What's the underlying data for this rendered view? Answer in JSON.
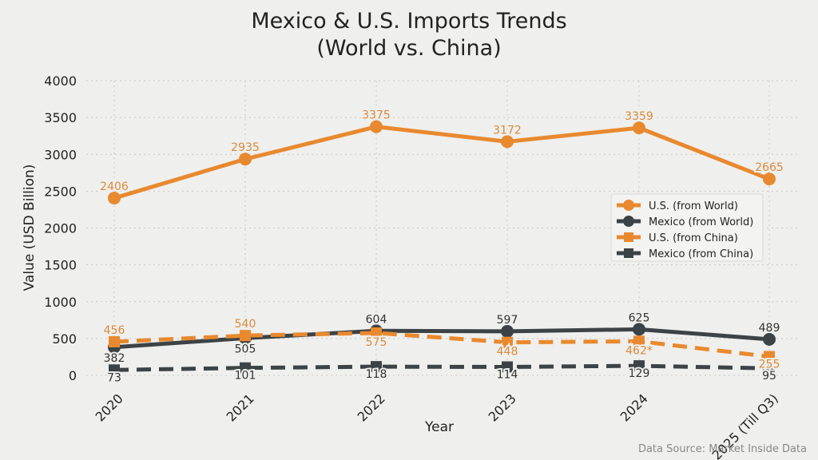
{
  "chart_data": {
    "type": "line",
    "title": "Mexico & U.S. Imports Trends\n(World vs. China)",
    "title_lines": [
      "Mexico & U.S. Imports Trends",
      "(World vs. China)"
    ],
    "xlabel": "Year",
    "ylabel": "Value (USD Billion)",
    "categories": [
      "2020",
      "2021",
      "2022",
      "2023",
      "2024",
      "2025 (Till Q3)"
    ],
    "ylim": [
      0,
      4000
    ],
    "yticks": [
      "0",
      "500",
      "1000",
      "1500",
      "2000",
      "2500",
      "3000",
      "3500",
      "4000"
    ],
    "grid": true,
    "legend_position": "right",
    "series": [
      {
        "name": "U.S. (from World)",
        "values": [
          2406,
          2935,
          3375,
          3172,
          3359,
          2665
        ],
        "labels": [
          "2406",
          "2935",
          "3375",
          "3172",
          "3359",
          "2665"
        ],
        "color": "#e8892f",
        "style": "solid",
        "marker": "circle"
      },
      {
        "name": "Mexico (from World)",
        "values": [
          382,
          505,
          604,
          597,
          625,
          489
        ],
        "labels": [
          "382",
          "505",
          "604",
          "597",
          "625",
          "489"
        ],
        "color": "#3c4347",
        "style": "solid",
        "marker": "circle"
      },
      {
        "name": "U.S. (from China)",
        "values": [
          456,
          540,
          575,
          448,
          462,
          255
        ],
        "labels": [
          "456",
          "540",
          "575",
          "448",
          "462*",
          "255"
        ],
        "color": "#e8892f",
        "style": "dashed",
        "marker": "square"
      },
      {
        "name": "Mexico (from China)",
        "values": [
          73,
          101,
          118,
          114,
          129,
          95
        ],
        "labels": [
          "73",
          "101",
          "118",
          "114",
          "129",
          "95"
        ],
        "color": "#3c4347",
        "style": "dashed",
        "marker": "square"
      }
    ],
    "source": "Data Source: Market Inside Data"
  }
}
